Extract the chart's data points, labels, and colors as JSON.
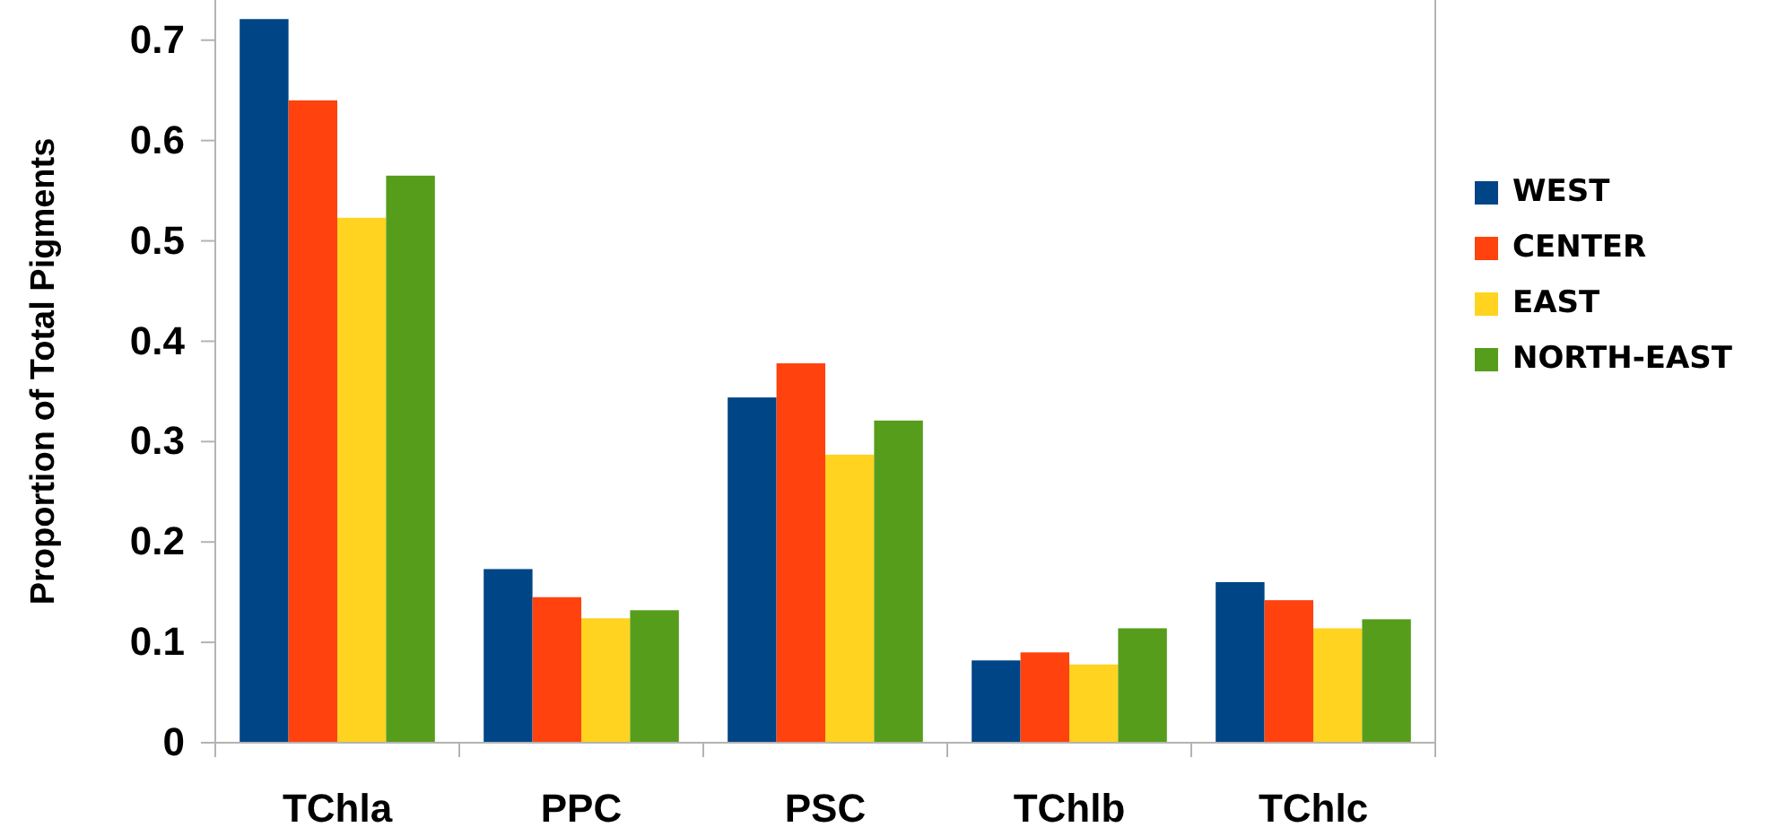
{
  "chart_data": {
    "type": "bar",
    "ylabel": "Proportion of Total Pigments",
    "categories": [
      "TChla",
      "PPC",
      "PSC",
      "TChlb",
      "TChlc"
    ],
    "series": [
      {
        "name": "WEST",
        "color": "#004586",
        "values": [
          0.721,
          0.173,
          0.344,
          0.082,
          0.16
        ]
      },
      {
        "name": "CENTER",
        "color": "#ff420e",
        "values": [
          0.64,
          0.145,
          0.378,
          0.09,
          0.142
        ]
      },
      {
        "name": "EAST",
        "color": "#ffd320",
        "values": [
          0.523,
          0.124,
          0.287,
          0.078,
          0.114
        ]
      },
      {
        "name": "NORTH-EAST",
        "color": "#579d1c",
        "values": [
          0.565,
          0.132,
          0.321,
          0.114,
          0.123
        ]
      }
    ],
    "ylim": [
      0,
      0.74
    ],
    "yticks": [
      0,
      0.1,
      0.2,
      0.3,
      0.4,
      0.5,
      0.6,
      0.7
    ],
    "grid": false,
    "legend": "right"
  }
}
